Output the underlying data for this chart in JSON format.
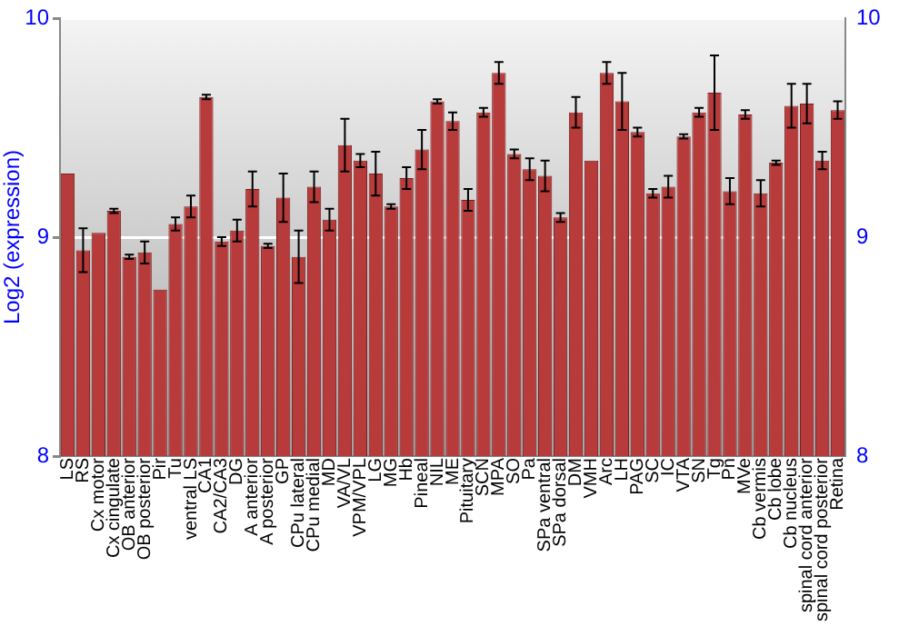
{
  "chart_data": {
    "type": "bar",
    "ylabel": "Log2 (expression)",
    "categories": [
      "LS",
      "RS",
      "Cx motor",
      "Cx cingulate",
      "OB anterior",
      "OB posterior",
      "Pir",
      "Tu",
      "ventral LS",
      "CA1",
      "CA2/CA3",
      "DG",
      "A anterior",
      "A posterior",
      "GP",
      "CPu lateral",
      "CPu medial",
      "MD",
      "VA/VL",
      "VPM/VPL",
      "LG",
      "MG",
      "Hb",
      "Pineal",
      "NIL",
      "ME",
      "Pituitary",
      "SCN",
      "MPA",
      "SO",
      "Pa",
      "SPa ventral",
      "SPa dorsal",
      "DM",
      "VMH",
      "Arc",
      "LH",
      "PAG",
      "SC",
      "IC",
      "VTA",
      "SN",
      "Tg",
      "Pn",
      "MVe",
      "Cb vermis",
      "Cb lobe",
      "Cb nucleus",
      "spinal cord anterior",
      "spinal cord posterior",
      "Retina"
    ],
    "values": [
      9.29,
      8.94,
      9.02,
      9.12,
      8.91,
      8.93,
      8.76,
      9.06,
      9.14,
      9.64,
      8.98,
      9.03,
      9.22,
      8.96,
      9.18,
      8.91,
      9.23,
      9.08,
      9.42,
      9.35,
      9.29,
      9.14,
      9.27,
      9.4,
      9.62,
      9.53,
      9.17,
      9.57,
      9.75,
      9.38,
      9.31,
      9.28,
      9.09,
      9.57,
      9.35,
      9.75,
      9.62,
      9.48,
      9.2,
      9.23,
      9.46,
      9.57,
      9.66,
      9.21,
      9.56,
      9.2,
      9.34,
      9.6,
      9.61,
      9.35,
      9.58
    ],
    "errors": [
      null,
      0.1,
      null,
      0.01,
      0.01,
      0.05,
      null,
      0.03,
      0.05,
      0.01,
      0.02,
      0.05,
      0.08,
      0.01,
      0.11,
      0.12,
      0.07,
      0.05,
      0.12,
      0.03,
      0.1,
      0.01,
      0.05,
      0.09,
      0.01,
      0.04,
      0.05,
      0.02,
      0.05,
      0.02,
      0.05,
      0.07,
      0.02,
      0.07,
      null,
      0.05,
      0.13,
      0.02,
      0.02,
      0.05,
      0.01,
      0.02,
      0.17,
      0.06,
      0.02,
      0.06,
      0.01,
      0.1,
      0.09,
      0.04,
      0.04
    ],
    "color": "#b83b3b",
    "ylim": [
      8,
      10
    ],
    "yticks": [
      8,
      9,
      10
    ],
    "y2lim": [
      8,
      10
    ],
    "y2ticks": [
      8,
      9,
      10
    ],
    "grid": "y",
    "legend": false
  }
}
